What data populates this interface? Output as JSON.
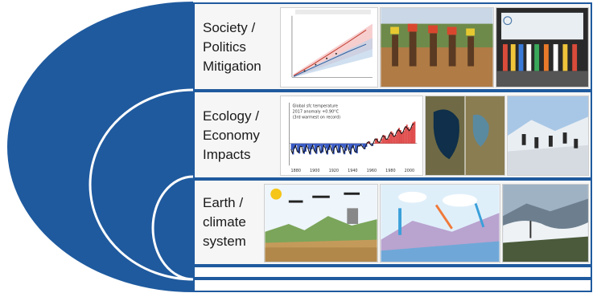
{
  "colors": {
    "arc_blue": "#1f5a9e",
    "panel_border": "#1f5a9e"
  },
  "rows": [
    {
      "label": "Society /\nPolitics\nMitigation"
    },
    {
      "label": "Ecology /\nEconomy\nImpacts"
    },
    {
      "label": "Earth /\nclimate\nsystem"
    }
  ],
  "charts": {
    "temperature_note": [
      "Global sfc temperature",
      "2017 anomaly +0.90°C",
      "(3rd warmest on record)"
    ],
    "temperature_years": [
      "1880",
      "1900",
      "1920",
      "1940",
      "1960",
      "1980",
      "2000"
    ]
  },
  "images": {
    "mitigation_plot": "emissions-projection-chart",
    "people_photo": "people-carrying-water-photo",
    "conference_photo": "climate-conference-stage-photo",
    "aral_sea_photo": "satellite-lake-comparison",
    "glacier_photo": "people-on-glacier-photo",
    "earth_system_diagram": "earth-system-process-diagram",
    "climate_cycle_diagram": "climate-cycle-illustration",
    "mountain_clouds_photo": "mountain-clouds-photo"
  }
}
